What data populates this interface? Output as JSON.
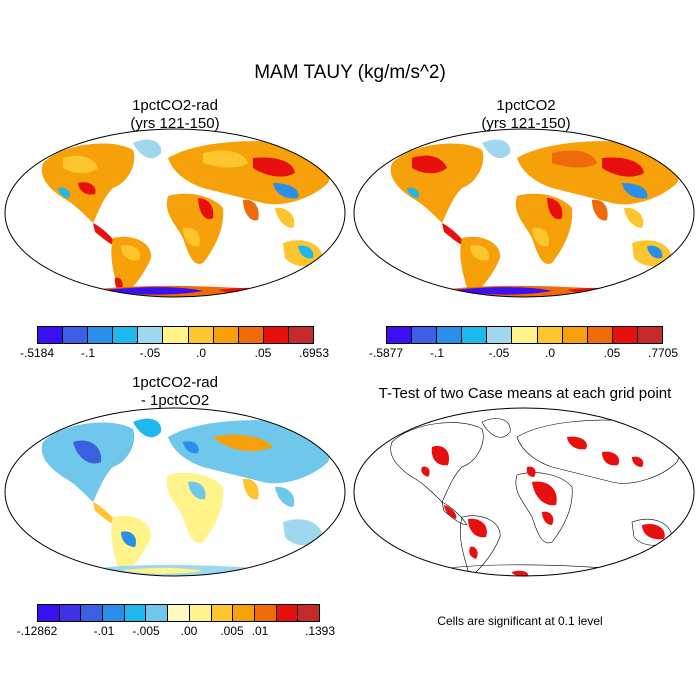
{
  "figure": {
    "title": "MAM TAUY (kg/m/s^2)",
    "panels": [
      {
        "title_line1": "1pctCO2-rad",
        "title_line2": "(yrs 121-150)",
        "colorbar": {
          "colors": [
            "#3a10f0",
            "#3b5fe6",
            "#2a8fe8",
            "#1fb8ec",
            "#9fd8ee",
            "#fff38a",
            "#fdc52e",
            "#f6a00a",
            "#ef6a08",
            "#e8100f",
            "#c52a2a"
          ],
          "labels": [
            "-.5184",
            "-.1",
            "-.05",
            ".0",
            ".05",
            ".6953"
          ]
        }
      },
      {
        "title_line1": "1pctCO2",
        "title_line2": "(yrs 121-150)",
        "colorbar": {
          "colors": [
            "#3a10f0",
            "#3b5fe6",
            "#2a8fe8",
            "#1fb8ec",
            "#9fd8ee",
            "#fff38a",
            "#fdc52e",
            "#f6a00a",
            "#ef6a08",
            "#e8100f",
            "#c52a2a"
          ],
          "labels": [
            "-.5877",
            "-.1",
            "-.05",
            ".0",
            ".05",
            ".7705"
          ]
        }
      },
      {
        "title_line1": "1pctCO2-rad",
        "title_line2": "- 1pctCO2",
        "colorbar": {
          "colors": [
            "#3a10f0",
            "#4030e8",
            "#3a60e0",
            "#2a8fe8",
            "#1fb8ec",
            "#6fc8ec",
            "#fff8c0",
            "#fff38a",
            "#fdc52e",
            "#f6a00a",
            "#ef6a08",
            "#e8100f",
            "#c52a2a"
          ],
          "labels": [
            "-.12862",
            "-.01",
            "-.005",
            ".00",
            ".005",
            ".01",
            ".1393"
          ]
        }
      },
      {
        "title_line1": "T-Test of two Case means at each grid point",
        "note": "Cells are significant at 0.1 level"
      }
    ]
  }
}
